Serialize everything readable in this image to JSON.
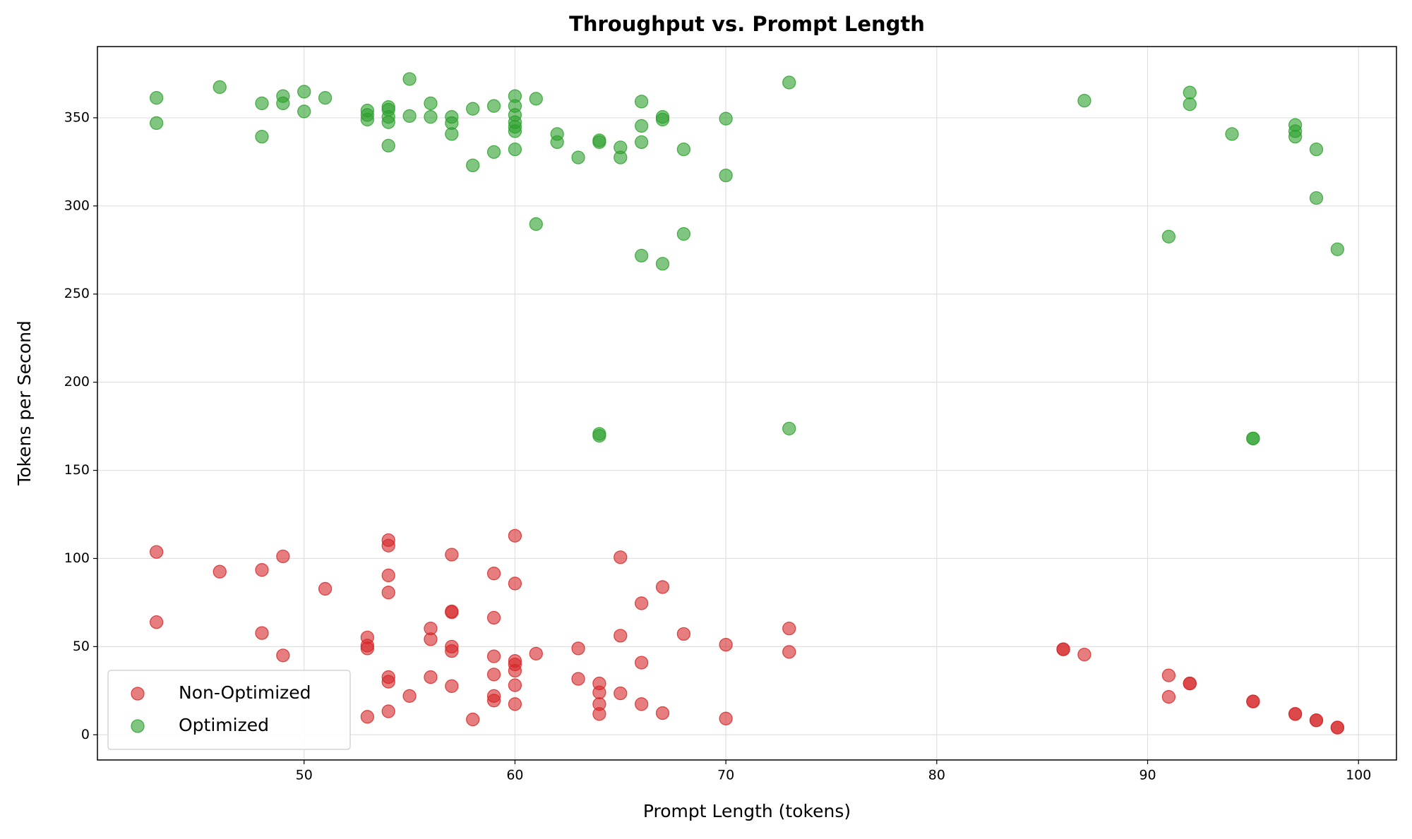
{
  "chart_data": {
    "type": "scatter",
    "title": "Throughput vs. Prompt Length",
    "x_label": "Prompt Length (tokens)",
    "y_label": "Tokens per Second",
    "xlim": [
      40.2,
      101.8
    ],
    "ylim": [
      -14.3,
      390.4
    ],
    "xticks": [
      50,
      60,
      70,
      80,
      90,
      100
    ],
    "yticks": [
      0,
      50,
      100,
      150,
      200,
      250,
      300,
      350
    ],
    "grid": true,
    "legend": "lower left",
    "series": [
      {
        "name": "Non-Optimized",
        "color": "#d62728",
        "x": [
          43,
          43,
          46,
          48,
          48,
          49,
          49,
          51,
          53,
          53,
          53,
          53,
          54,
          54,
          54,
          54,
          54,
          54,
          54,
          55,
          56,
          56,
          56,
          57,
          57,
          57,
          57,
          57,
          57,
          58,
          59,
          59,
          59,
          59,
          59,
          59,
          60,
          60,
          60,
          60,
          60,
          60,
          60,
          61,
          63,
          63,
          64,
          64,
          64,
          64,
          65,
          65,
          65,
          66,
          66,
          66,
          67,
          67,
          68,
          70,
          70,
          73,
          73,
          86,
          86,
          87,
          91,
          91,
          92,
          92,
          95,
          95,
          97,
          97,
          98,
          98,
          99,
          99
        ],
        "values": [
          103.7,
          63.9,
          92.5,
          93.5,
          57.7,
          101.2,
          45,
          82.8,
          55.2,
          50.6,
          49,
          10.2,
          110.4,
          107.3,
          90.4,
          80.7,
          32.7,
          30.1,
          13.3,
          22,
          60.3,
          54.2,
          32.7,
          102.2,
          70,
          69.5,
          50,
          47.5,
          27.6,
          8.7,
          91.5,
          66.4,
          44.5,
          34.2,
          22,
          19.4,
          112.9,
          85.8,
          41.9,
          39.9,
          36.3,
          28.1,
          17.4,
          46,
          49,
          31.7,
          29.1,
          24,
          17.4,
          11.8,
          100.7,
          56.2,
          23.5,
          74.6,
          40.9,
          17.4,
          83.8,
          12.3,
          57.2,
          51.1,
          9.2,
          60.3,
          47,
          48.5,
          48.5,
          45.5,
          33.7,
          21.5,
          29.1,
          29.1,
          18.9,
          18.9,
          11.8,
          11.8,
          8.2,
          8.2,
          4.1,
          4.1
        ]
      },
      {
        "name": "Optimized",
        "color": "#2ca02c",
        "x": [
          43,
          43,
          46,
          48,
          48,
          49,
          49,
          50,
          50,
          51,
          53,
          53,
          53,
          54,
          54,
          54,
          54,
          54,
          55,
          55,
          56,
          56,
          57,
          57,
          57,
          58,
          58,
          59,
          59,
          60,
          60,
          60,
          60,
          60,
          60,
          60,
          61,
          61,
          62,
          62,
          63,
          64,
          64,
          64,
          64,
          65,
          65,
          66,
          66,
          66,
          66,
          67,
          67,
          67,
          68,
          68,
          70,
          70,
          73,
          73,
          87,
          91,
          92,
          92,
          94,
          95,
          95,
          97,
          97,
          97,
          98,
          98,
          99
        ],
        "values": [
          361.3,
          347,
          367.4,
          358.2,
          339.3,
          362.3,
          358.2,
          364.8,
          353.6,
          361.3,
          354.1,
          351.6,
          349,
          356.1,
          354.6,
          350.5,
          347.5,
          334.2,
          372,
          351,
          358.2,
          350.5,
          350.5,
          347,
          340.8,
          355.1,
          323,
          356.7,
          330.6,
          362.3,
          356.7,
          351.6,
          347.5,
          344.9,
          342.4,
          332.1,
          360.8,
          289.7,
          340.8,
          336.2,
          327.5,
          337.2,
          336.2,
          170.7,
          169.6,
          333.2,
          327.5,
          359.2,
          345.4,
          336.2,
          271.8,
          350.5,
          349,
          267.2,
          332.1,
          284.1,
          349.5,
          317.3,
          370,
          173.7,
          359.7,
          282.6,
          364.3,
          357.7,
          340.8,
          168.1,
          168.1,
          345.9,
          342.4,
          339.3,
          332.1,
          304.5,
          275.4
        ]
      }
    ]
  }
}
